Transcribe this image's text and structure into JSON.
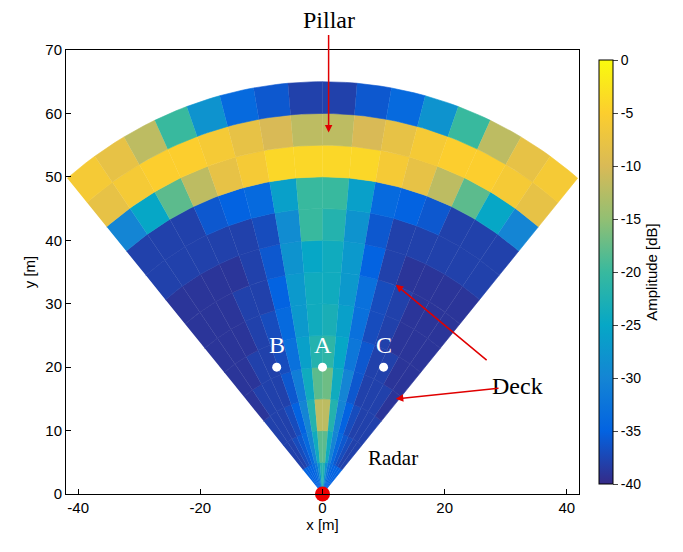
{
  "chart_data": {
    "type": "heatmap",
    "xlabel": "x [m]",
    "ylabel": "y [m]",
    "xlim": [
      -42,
      42
    ],
    "ylim": [
      0,
      70
    ],
    "xticks": [
      -40,
      -20,
      0,
      20,
      40
    ],
    "yticks": [
      0,
      10,
      20,
      30,
      40,
      50,
      60,
      70
    ],
    "colorbar": {
      "title": "Amplitude [dB]",
      "range": [
        -40,
        0
      ],
      "ticks": [
        0,
        -5,
        -10,
        -15,
        -20,
        -25,
        -30,
        -35,
        -40
      ]
    },
    "r_edges": [
      0,
      5,
      10,
      15,
      20,
      25,
      30,
      35,
      40,
      45,
      50,
      55,
      60,
      65
    ],
    "theta_edges": [
      -40,
      -35,
      -30,
      -25,
      -20,
      -15,
      -10,
      -5,
      0,
      5,
      10,
      15,
      20,
      25,
      30,
      35,
      40
    ],
    "cells": [
      [
        -35,
        -35,
        -35,
        -35,
        -34,
        -32,
        -28,
        -22,
        -22,
        -28,
        -32,
        -34,
        -35,
        -35,
        -35,
        -35
      ],
      [
        -38,
        -38,
        -37,
        -36,
        -34,
        -30,
        -24,
        -18,
        -18,
        -24,
        -30,
        -34,
        -36,
        -37,
        -38,
        -38
      ],
      [
        -38,
        -38,
        -38,
        -37,
        -35,
        -30,
        -22,
        -12,
        -12,
        -22,
        -30,
        -35,
        -37,
        -38,
        -38,
        -38
      ],
      [
        -39,
        -38,
        -38,
        -38,
        -36,
        -31,
        -24,
        -18,
        -17,
        -24,
        -30,
        -36,
        -38,
        -38,
        -38,
        -39
      ],
      [
        -39,
        -39,
        -38,
        -38,
        -37,
        -33,
        -26,
        -22,
        -21,
        -25,
        -32,
        -36,
        -38,
        -38,
        -39,
        -39
      ],
      [
        -39,
        -39,
        -39,
        -38,
        -37,
        -34,
        -27,
        -24,
        -23,
        -26,
        -33,
        -37,
        -38,
        -39,
        -39,
        -39
      ],
      [
        -39,
        -39,
        -39,
        -38,
        -38,
        -35,
        -27,
        -24,
        -24,
        -27,
        -33,
        -37,
        -38,
        -39,
        -39,
        -39
      ],
      [
        -39,
        -39,
        -39,
        -39,
        -38,
        -36,
        -28,
        -25,
        -24,
        -27,
        -35,
        -38,
        -39,
        -39,
        -39,
        -39
      ],
      [
        -38,
        -38,
        -38,
        -38,
        -38,
        -37,
        -29,
        -20,
        -22,
        -28,
        -36,
        -38,
        -38,
        -38,
        -38,
        -38
      ],
      [
        -38,
        -38,
        -38,
        -36,
        -35,
        -34,
        -26,
        -20,
        -20,
        -26,
        -34,
        -35,
        -36,
        -38,
        -38,
        -38
      ],
      [
        -30,
        -25,
        -18,
        -12,
        -8,
        -6,
        -4,
        -4,
        -4,
        -4,
        -6,
        -8,
        -12,
        -18,
        -25,
        -30
      ],
      [
        -8,
        -6,
        -5,
        -5,
        -6,
        -8,
        -10,
        -12,
        -12,
        -10,
        -8,
        -6,
        -5,
        -5,
        -6,
        -8
      ],
      [
        -6,
        -8,
        -12,
        -20,
        -28,
        -34,
        -36,
        -38,
        -38,
        -36,
        -34,
        -28,
        -20,
        -12,
        -8,
        -6
      ]
    ],
    "points": [
      {
        "label": "B",
        "x": -7.5,
        "y": 20
      },
      {
        "label": "A",
        "x": 0,
        "y": 20
      },
      {
        "label": "C",
        "x": 10,
        "y": 20
      }
    ],
    "radar": {
      "label": "Radar",
      "x": 0,
      "y": 0
    },
    "annotations": [
      {
        "text": "Pillar",
        "x": 1,
        "y": 57
      },
      {
        "text": "Deck",
        "targets": [
          {
            "x": 12,
            "y": 33
          },
          {
            "x": 12,
            "y": 15
          }
        ]
      }
    ]
  }
}
